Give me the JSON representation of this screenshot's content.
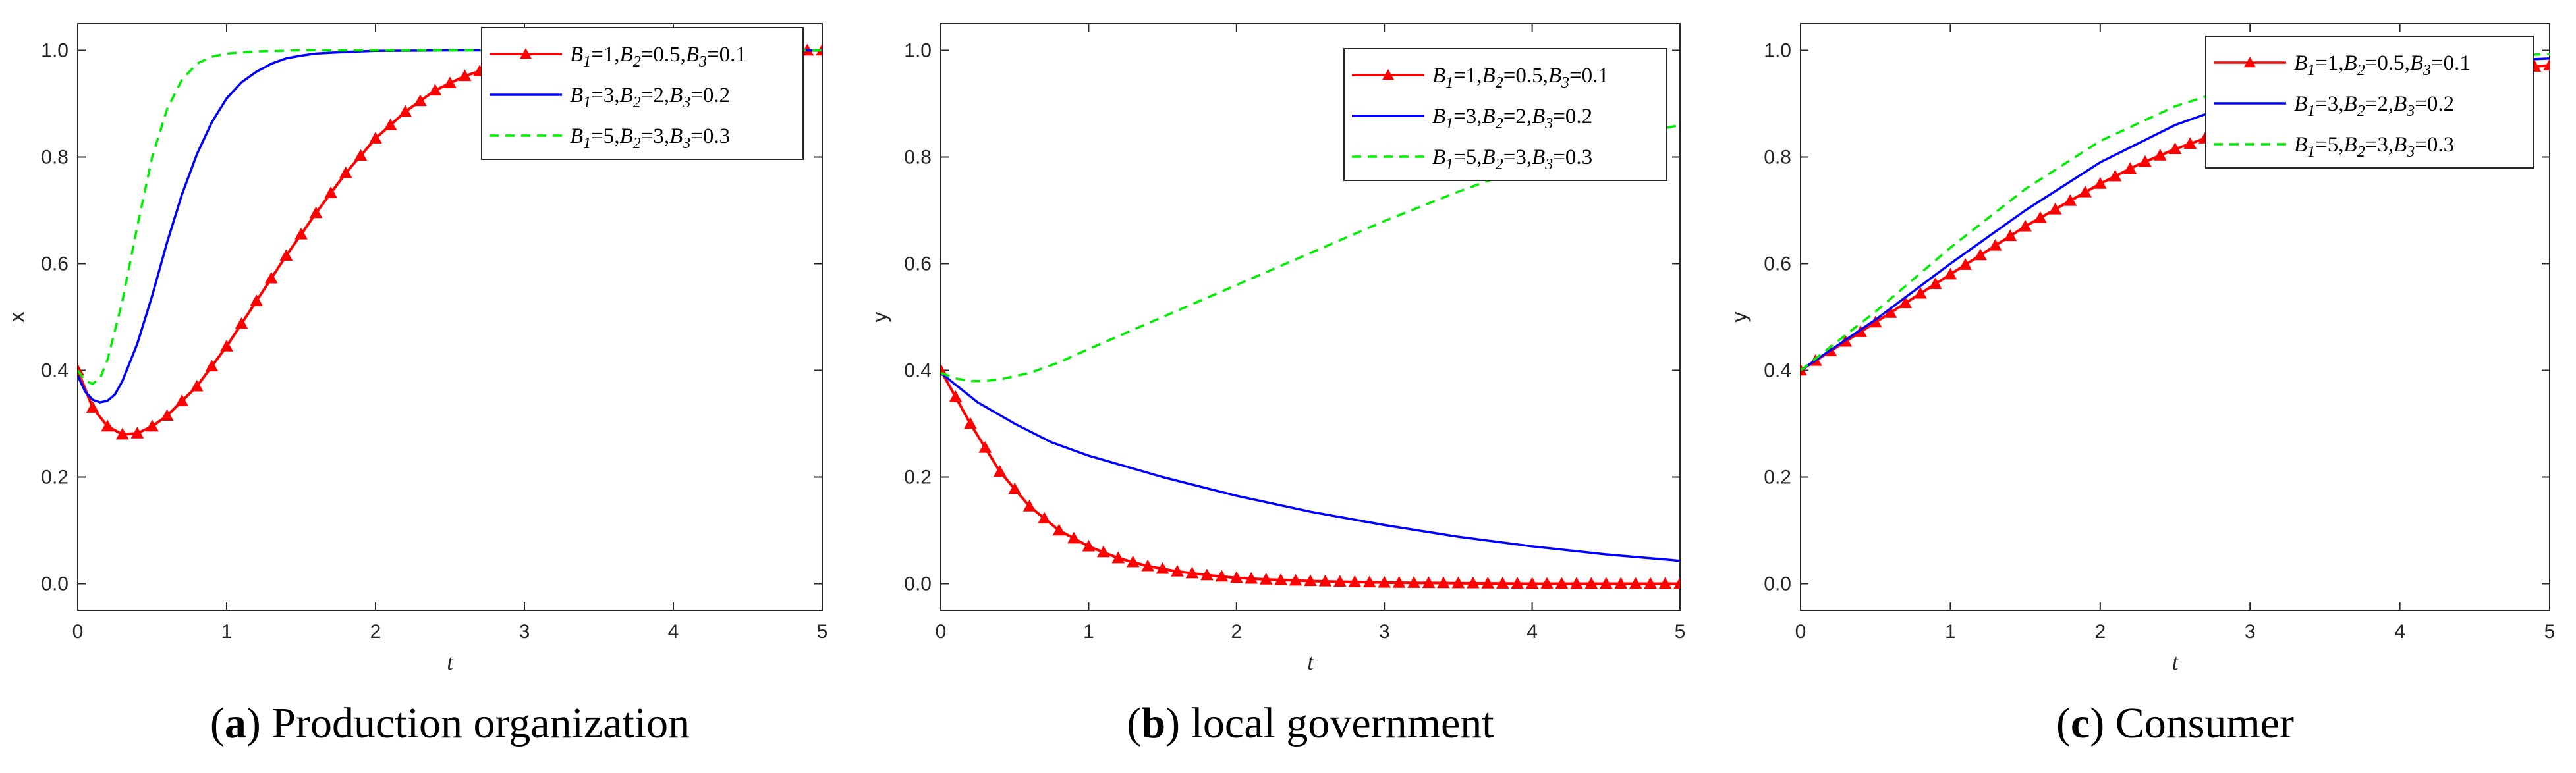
{
  "chart_data": [
    {
      "type": "line",
      "caption_letter": "a",
      "caption_text": "Production organization",
      "xlabel": "t",
      "ylabel": "x",
      "xlim": [
        0,
        5
      ],
      "ylim": [
        -0.05,
        1.05
      ],
      "xticks": [
        "0",
        "1",
        "2",
        "3",
        "4",
        "5"
      ],
      "yticks": [
        "0.0",
        "0.2",
        "0.4",
        "0.6",
        "0.8",
        "1.0"
      ],
      "legend_position": "top-right",
      "series": [
        {
          "name": "B1=1,B2=0.5,B3=0.1",
          "color": "#ff0000",
          "style": "solid-triangle",
          "x": [
            0,
            0.1,
            0.2,
            0.3,
            0.4,
            0.5,
            0.6,
            0.8,
            1.0,
            1.2,
            1.4,
            1.6,
            1.8,
            2.0,
            2.2,
            2.4,
            2.6,
            2.8,
            3.0,
            3.2,
            3.5,
            4.0,
            4.5,
            5.0
          ],
          "y": [
            0.4,
            0.33,
            0.295,
            0.28,
            0.282,
            0.295,
            0.315,
            0.37,
            0.445,
            0.53,
            0.615,
            0.695,
            0.77,
            0.835,
            0.885,
            0.925,
            0.952,
            0.97,
            0.982,
            0.99,
            0.995,
            0.998,
            0.999,
            1.0
          ]
        },
        {
          "name": "B1=3,B2=2,B3=0.2",
          "color": "#0000ff",
          "style": "solid",
          "x": [
            0,
            0.05,
            0.1,
            0.15,
            0.2,
            0.25,
            0.3,
            0.4,
            0.5,
            0.6,
            0.7,
            0.8,
            0.9,
            1.0,
            1.1,
            1.2,
            1.3,
            1.4,
            1.5,
            1.6,
            1.8,
            2.0,
            2.5,
            3.0,
            4.0,
            5.0
          ],
          "y": [
            0.39,
            0.36,
            0.345,
            0.34,
            0.343,
            0.355,
            0.38,
            0.45,
            0.54,
            0.64,
            0.73,
            0.805,
            0.865,
            0.91,
            0.94,
            0.96,
            0.975,
            0.985,
            0.99,
            0.994,
            0.997,
            0.999,
            1.0,
            1.0,
            1.0,
            1.0
          ]
        },
        {
          "name": "B1=5,B2=3,B3=0.3",
          "color": "#00ee00",
          "style": "dashed",
          "x": [
            0,
            0.05,
            0.1,
            0.15,
            0.2,
            0.3,
            0.4,
            0.5,
            0.6,
            0.7,
            0.8,
            0.9,
            1.0,
            1.2,
            1.5,
            2.0,
            3.0,
            4.0,
            5.0
          ],
          "y": [
            0.4,
            0.38,
            0.375,
            0.385,
            0.42,
            0.53,
            0.67,
            0.8,
            0.89,
            0.945,
            0.975,
            0.988,
            0.994,
            0.998,
            1.0,
            1.0,
            1.0,
            1.0,
            1.0
          ]
        }
      ]
    },
    {
      "type": "line",
      "caption_letter": "b",
      "caption_text": "local government",
      "xlabel": "t",
      "ylabel": "y",
      "xlim": [
        0,
        5
      ],
      "ylim": [
        -0.05,
        1.05
      ],
      "xticks": [
        "0",
        "1",
        "2",
        "3",
        "4",
        "5"
      ],
      "yticks": [
        "0.0",
        "0.2",
        "0.4",
        "0.6",
        "0.8",
        "1.0"
      ],
      "legend_position": "top-right",
      "series": [
        {
          "name": "B1=1,B2=0.5,B3=0.1",
          "color": "#ff0000",
          "style": "solid-triangle",
          "x": [
            0,
            0.2,
            0.4,
            0.6,
            0.8,
            1.0,
            1.2,
            1.4,
            1.6,
            1.8,
            2.0,
            2.2,
            2.5,
            3.0,
            3.5,
            4.0,
            4.5,
            5.0
          ],
          "y": [
            0.4,
            0.3,
            0.21,
            0.145,
            0.1,
            0.07,
            0.048,
            0.033,
            0.023,
            0.016,
            0.011,
            0.008,
            0.005,
            0.002,
            0.001,
            0.0,
            0.0,
            0.0
          ]
        },
        {
          "name": "B1=3,B2=2,B3=0.2",
          "color": "#0000ff",
          "style": "solid",
          "x": [
            0,
            0.25,
            0.5,
            0.75,
            1.0,
            1.5,
            2.0,
            2.5,
            3.0,
            3.5,
            4.0,
            4.5,
            5.0
          ],
          "y": [
            0.395,
            0.34,
            0.3,
            0.265,
            0.24,
            0.2,
            0.165,
            0.135,
            0.11,
            0.088,
            0.07,
            0.055,
            0.043
          ]
        },
        {
          "name": "B1=5,B2=3,B3=0.3",
          "color": "#00ee00",
          "style": "dashed",
          "x": [
            0,
            0.1,
            0.2,
            0.3,
            0.4,
            0.6,
            0.8,
            1.0,
            1.5,
            2.0,
            2.5,
            3.0,
            3.5,
            4.0,
            4.5,
            5.0
          ],
          "y": [
            0.395,
            0.385,
            0.38,
            0.38,
            0.383,
            0.395,
            0.415,
            0.44,
            0.5,
            0.56,
            0.62,
            0.68,
            0.735,
            0.785,
            0.83,
            0.86
          ]
        }
      ]
    },
    {
      "type": "line",
      "caption_letter": "c",
      "caption_text": "Consumer",
      "xlabel": "t",
      "ylabel": "y",
      "xlim": [
        0,
        5
      ],
      "ylim": [
        -0.05,
        1.05
      ],
      "xticks": [
        "0",
        "1",
        "2",
        "3",
        "4",
        "5"
      ],
      "yticks": [
        "0.0",
        "0.2",
        "0.4",
        "0.6",
        "0.8",
        "1.0"
      ],
      "legend_position": "top-right",
      "series": [
        {
          "name": "B1=1,B2=0.5,B3=0.1",
          "color": "#ff0000",
          "style": "solid-triangle",
          "x": [
            0,
            0.25,
            0.5,
            0.75,
            1.0,
            1.25,
            1.5,
            1.75,
            2.0,
            2.25,
            2.5,
            2.75,
            3.0,
            3.25,
            3.5,
            3.75,
            4.0,
            4.25,
            4.5,
            4.75,
            5.0
          ],
          "y": [
            0.4,
            0.445,
            0.49,
            0.535,
            0.58,
            0.625,
            0.67,
            0.71,
            0.75,
            0.785,
            0.815,
            0.84,
            0.865,
            0.885,
            0.905,
            0.92,
            0.935,
            0.948,
            0.958,
            0.966,
            0.972
          ]
        },
        {
          "name": "B1=3,B2=2,B3=0.2",
          "color": "#0000ff",
          "style": "solid",
          "x": [
            0,
            0.5,
            1.0,
            1.5,
            2.0,
            2.5,
            3.0,
            3.5,
            4.0,
            4.5,
            5.0
          ],
          "y": [
            0.4,
            0.495,
            0.6,
            0.7,
            0.79,
            0.86,
            0.91,
            0.945,
            0.965,
            0.978,
            0.985
          ]
        },
        {
          "name": "B1=5,B2=3,B3=0.3",
          "color": "#00ee00",
          "style": "dashed",
          "x": [
            0,
            0.5,
            1.0,
            1.5,
            2.0,
            2.5,
            3.0,
            3.5,
            4.0,
            4.5,
            5.0
          ],
          "y": [
            0.4,
            0.51,
            0.63,
            0.74,
            0.83,
            0.895,
            0.94,
            0.965,
            0.98,
            0.988,
            0.993
          ]
        }
      ]
    }
  ],
  "legend_label_parts": [
    [
      [
        "B",
        "1",
        "=1,"
      ],
      [
        "B",
        "2",
        "=0.5,"
      ],
      [
        "B",
        "3",
        "=0.1"
      ]
    ],
    [
      [
        "B",
        "1",
        "=3,"
      ],
      [
        "B",
        "2",
        "=2,"
      ],
      [
        "B",
        "3",
        "=0.2"
      ]
    ],
    [
      [
        "B",
        "1",
        "=5,"
      ],
      [
        "B",
        "2",
        "=3,"
      ],
      [
        "B",
        "3",
        "=0.3"
      ]
    ]
  ]
}
